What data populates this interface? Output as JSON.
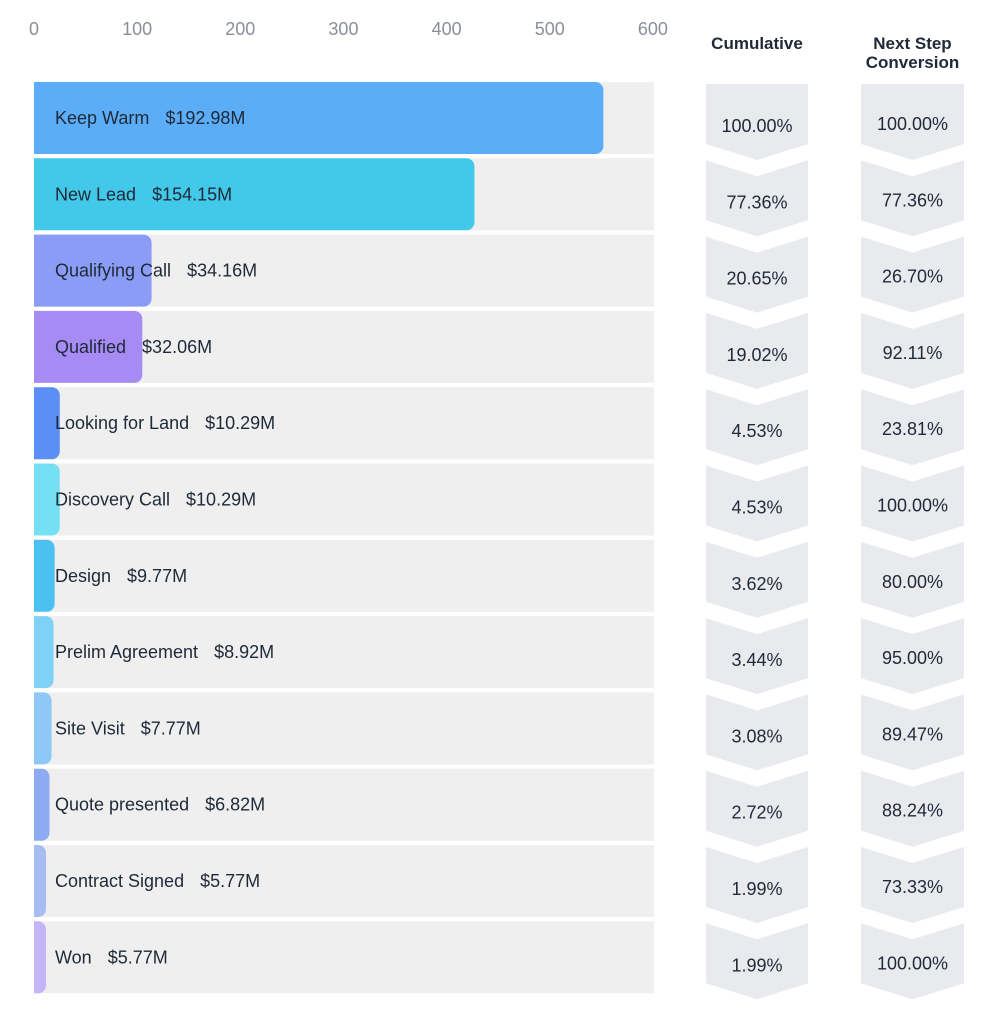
{
  "chart_data": {
    "type": "bar",
    "orientation": "horizontal",
    "x_ticks": [
      "0",
      "100",
      "200",
      "300",
      "400",
      "500",
      "600"
    ],
    "xlim": [
      0,
      600
    ],
    "headers": {
      "cumulative": [
        "Cumulative"
      ],
      "next_step": [
        "Next Step",
        "Conversion"
      ]
    },
    "stages": [
      {
        "name": "Keep Warm",
        "amount": "$192.98M",
        "count": 552,
        "cumulative": "100.00%",
        "next_step": "100.00%",
        "color": "#5badf8"
      },
      {
        "name": "New Lead",
        "amount": "$154.15M",
        "count": 427,
        "cumulative": "77.36%",
        "next_step": "77.36%",
        "color": "#42c9e9"
      },
      {
        "name": "Qualifying Call",
        "amount": "$34.16M",
        "count": 114,
        "cumulative": "20.65%",
        "next_step": "26.70%",
        "color": "#8b9cf6"
      },
      {
        "name": "Qualified",
        "amount": "$32.06M",
        "count": 105,
        "cumulative": "19.02%",
        "next_step": "92.11%",
        "color": "#a78bf5"
      },
      {
        "name": "Looking for Land",
        "amount": "$10.29M",
        "count": 25,
        "cumulative": "4.53%",
        "next_step": "23.81%",
        "color": "#5b8ff5"
      },
      {
        "name": "Discovery Call",
        "amount": "$10.29M",
        "count": 25,
        "cumulative": "4.53%",
        "next_step": "100.00%",
        "color": "#75e0f3"
      },
      {
        "name": "Design",
        "amount": "$9.77M",
        "count": 20,
        "cumulative": "3.62%",
        "next_step": "80.00%",
        "color": "#4cc0f0"
      },
      {
        "name": "Prelim Agreement",
        "amount": "$8.92M",
        "count": 19,
        "cumulative": "3.44%",
        "next_step": "95.00%",
        "color": "#7fd2f6"
      },
      {
        "name": "Site Visit",
        "amount": "$7.77M",
        "count": 17,
        "cumulative": "3.08%",
        "next_step": "89.47%",
        "color": "#8ec8f7"
      },
      {
        "name": "Quote presented",
        "amount": "$6.82M",
        "count": 15,
        "cumulative": "2.72%",
        "next_step": "88.24%",
        "color": "#8cabf2"
      },
      {
        "name": "Contract Signed",
        "amount": "$5.77M",
        "count": 11,
        "cumulative": "1.99%",
        "next_step": "73.33%",
        "color": "#a8bcf4"
      },
      {
        "name": "Won",
        "amount": "$5.77M",
        "count": 11,
        "cumulative": "1.99%",
        "next_step": "100.00%",
        "color": "#c4b5f6"
      }
    ],
    "track_color": "#efeff0",
    "chevron_color": "#e9eaee"
  }
}
